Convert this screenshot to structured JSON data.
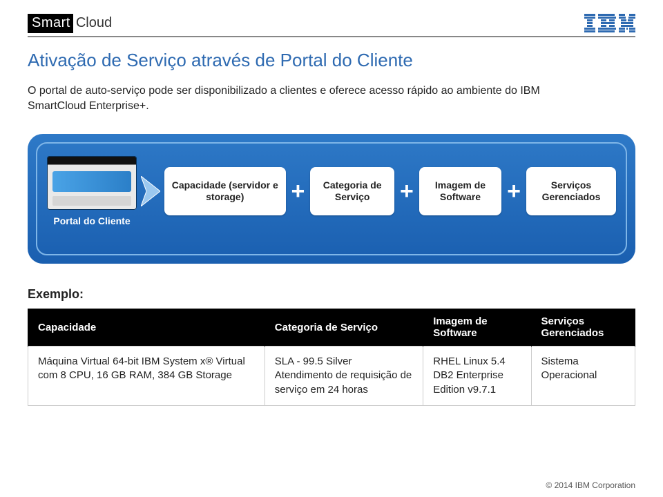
{
  "header": {
    "brand_left": "Smart",
    "brand_right": "Cloud",
    "ibm_logo_color": "#2e6ab1"
  },
  "title": "Ativação de Serviço através de Portal do Cliente",
  "subtitle": "O portal de auto-serviço pode ser disponibilizado a clientes e oferece acesso rápido ao ambiente do IBM SmartCloud Enterprise+.",
  "pipeline": {
    "portal_label": "Portal do Cliente",
    "chips": [
      "Capacidade (servidor e storage)",
      "Categoria de Serviço",
      "Imagem de Software",
      "Serviços Gerenciados"
    ],
    "plus_glyph": "+",
    "panel_gradient_top": "#2e79c7",
    "panel_gradient_bottom": "#1a5fb0",
    "inner_border": "#7fb6e8",
    "arrow_fill": "#9cc8ef",
    "arrow_edge": "#ffffff"
  },
  "example": {
    "label": "Exemplo:",
    "columns": [
      "Capacidade",
      "Categoria de Serviço",
      "Imagem de Software",
      "Serviços Gerenciados"
    ],
    "rows": [
      [
        "Máquina Virtual 64-bit IBM System x® Virtual com 8 CPU, 16 GB RAM, 384 GB Storage",
        "SLA - 99.5 Silver\nAtendimento de requisição de serviço em 24 horas",
        "RHEL Linux 5.4\nDB2 Enterprise Edition v9.7.1",
        "Sistema Operacional"
      ]
    ]
  },
  "footer": "© 2014 IBM Corporation"
}
